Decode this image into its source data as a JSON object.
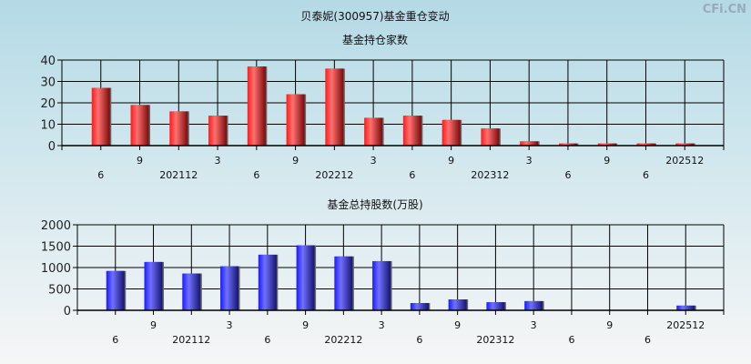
{
  "title": "贝泰妮(300957)基金重仓变动",
  "watermark": "CFi.CN",
  "chart_data": [
    {
      "type": "bar",
      "title": "基金持仓家数",
      "ylim": [
        0,
        40
      ],
      "yticks": [
        0,
        10,
        20,
        30,
        40
      ],
      "grid": true,
      "color": "#e8232a",
      "categories": [
        "6",
        "9",
        "202112",
        "3",
        "6",
        "9",
        "202212",
        "3",
        "6",
        "9",
        "202312",
        "3",
        "6",
        "9",
        "6",
        "202512"
      ],
      "values": [
        27,
        19,
        16,
        14,
        37,
        24,
        36,
        13,
        14,
        12,
        8,
        2,
        1,
        1,
        1,
        1
      ]
    },
    {
      "type": "bar",
      "title": "基金总持股数(万股)",
      "ylim": [
        0,
        2000
      ],
      "yticks": [
        0,
        500,
        1000,
        1500,
        2000
      ],
      "grid": true,
      "color": "#2a2ae0",
      "categories": [
        "6",
        "9",
        "202112",
        "3",
        "6",
        "9",
        "202212",
        "3",
        "6",
        "9",
        "202312",
        "3",
        "6",
        "9",
        "6",
        "202512"
      ],
      "values": [
        920,
        1130,
        860,
        1030,
        1300,
        1520,
        1260,
        1150,
        170,
        255,
        190,
        215,
        10,
        10,
        10,
        110
      ]
    }
  ]
}
